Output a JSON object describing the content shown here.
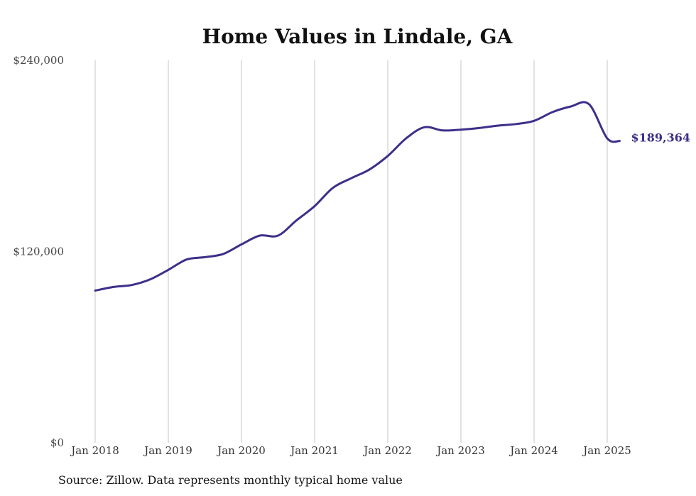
{
  "chart_data": {
    "type": "line",
    "title": "Home Values in Lindale, GA",
    "xlabel": "",
    "ylabel": "",
    "ylim": [
      0,
      240000
    ],
    "yticks": [
      {
        "value": 0,
        "label": "$0"
      },
      {
        "value": 120000,
        "label": "$120,000"
      },
      {
        "value": 240000,
        "label": "$240,000"
      }
    ],
    "xticks": [
      {
        "value": 2018,
        "label": "Jan 2018"
      },
      {
        "value": 2019,
        "label": "Jan 2019"
      },
      {
        "value": 2020,
        "label": "Jan 2020"
      },
      {
        "value": 2021,
        "label": "Jan 2021"
      },
      {
        "value": 2022,
        "label": "Jan 2022"
      },
      {
        "value": 2023,
        "label": "Jan 2023"
      },
      {
        "value": 2024,
        "label": "Jan 2024"
      },
      {
        "value": 2025,
        "label": "Jan 2025"
      }
    ],
    "grid": "vertical",
    "line_color": "#3d2f8a",
    "end_label": "$189,364",
    "series": [
      {
        "x": [
          2018.0,
          2018.25,
          2018.5,
          2018.75,
          2019.0,
          2019.25,
          2019.5,
          2019.75,
          2020.0,
          2020.25,
          2020.5,
          2020.75,
          2021.0,
          2021.25,
          2021.5,
          2021.75,
          2022.0,
          2022.25,
          2022.5,
          2022.75,
          2023.0,
          2023.25,
          2023.5,
          2023.75,
          2024.0,
          2024.25,
          2024.5,
          2024.75,
          2025.0,
          2025.17
        ],
        "y": [
          95500,
          97800,
          99000,
          102500,
          108500,
          115000,
          116500,
          118500,
          124500,
          130000,
          130000,
          139500,
          148500,
          160000,
          166000,
          171500,
          180000,
          191000,
          198000,
          196000,
          196500,
          197500,
          199000,
          200000,
          202000,
          207500,
          211000,
          212500,
          191000,
          189364
        ]
      }
    ]
  },
  "footer": {
    "source": "Source: Zillow. Data represents monthly typical home value"
  }
}
